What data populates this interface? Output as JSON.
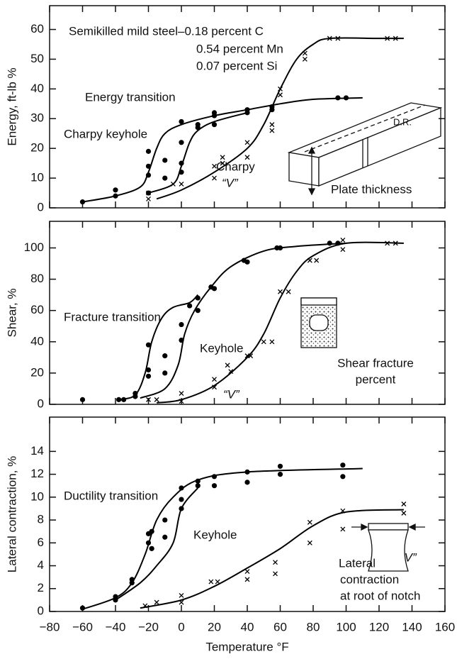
{
  "chart_data": [
    {
      "type": "scatter",
      "ylabel": "Energy, ft-lb %",
      "xlim": [
        -80,
        160
      ],
      "ylim": [
        0,
        68
      ],
      "yticks": [
        0,
        10,
        20,
        30,
        40,
        50,
        60
      ],
      "annotations": [
        "Semikilled mild steel–0.18 percent C",
        "0.54 percent Mn",
        "0.07 percent Si",
        "Energy transition",
        "Charpy keyhole",
        "Charpy",
        "“V”",
        "D.R.",
        "Plate thickness"
      ],
      "series": [
        {
          "style": "dot",
          "color": "#000000",
          "x": [
            -60,
            -40,
            -40,
            -20,
            -20,
            -20,
            -20,
            -10,
            -10,
            0,
            0,
            0,
            0,
            10,
            10,
            20,
            20,
            20,
            40,
            40,
            55,
            55,
            95,
            100
          ],
          "values": [
            2,
            6,
            4,
            19,
            14,
            11,
            5,
            16,
            10,
            29,
            22,
            15,
            12,
            28,
            27,
            32,
            31,
            28,
            33,
            32,
            34,
            33,
            37,
            37
          ]
        },
        {
          "style": "cross",
          "color": "#000000",
          "x": [
            -20,
            -20,
            -5,
            0,
            20,
            20,
            25,
            25,
            40,
            40,
            55,
            55,
            60,
            60,
            75,
            75,
            90,
            95,
            125,
            130
          ],
          "values": [
            5,
            3,
            8,
            8,
            14,
            10,
            17,
            15,
            22,
            17,
            28,
            26,
            40,
            38,
            52,
            50,
            57,
            57,
            57,
            57
          ]
        },
        {
          "style": "curve",
          "color": "#000000",
          "x": [
            -60,
            -40,
            -25,
            -20,
            -15,
            -10,
            0,
            20,
            40,
            60,
            80,
            110
          ],
          "values": [
            2,
            4,
            7,
            12,
            20,
            25,
            28,
            31,
            33,
            35,
            36.5,
            37
          ]
        },
        {
          "style": "curve",
          "color": "#000000",
          "x": [
            -20,
            -5,
            0,
            5,
            10,
            20,
            40
          ],
          "values": [
            5,
            8,
            14,
            22,
            26,
            29,
            32
          ]
        },
        {
          "style": "curve",
          "color": "#000000",
          "x": [
            -15,
            0,
            20,
            40,
            50,
            60,
            70,
            80,
            90,
            120,
            135
          ],
          "values": [
            3,
            6,
            12,
            20,
            28,
            40,
            50,
            55,
            57,
            57,
            57
          ]
        }
      ]
    },
    {
      "type": "scatter",
      "ylabel": "Shear, %",
      "xlim": [
        -80,
        160
      ],
      "ylim": [
        0,
        117
      ],
      "yticks": [
        0,
        20,
        40,
        60,
        80,
        100
      ],
      "annotations": [
        "Fracture transition",
        "Keyhole",
        "“V”",
        "Shear fracture",
        "percent"
      ],
      "series": [
        {
          "style": "dot",
          "color": "#000000",
          "x": [
            -60,
            -38,
            -35,
            -28,
            -28,
            -20,
            -20,
            -20,
            -10,
            -10,
            0,
            0,
            5,
            10,
            10,
            18,
            20,
            38,
            40,
            58,
            60,
            90,
            95
          ],
          "values": [
            3,
            3,
            3,
            7,
            5,
            38,
            22,
            18,
            31,
            20,
            51,
            41,
            63,
            68,
            60,
            75,
            74,
            92,
            91,
            100,
            100,
            103,
            103
          ]
        },
        {
          "style": "cross",
          "color": "#000000",
          "x": [
            -20,
            -15,
            0,
            0,
            20,
            20,
            28,
            30,
            40,
            42,
            50,
            55,
            60,
            65,
            78,
            82,
            98,
            98,
            125,
            130
          ],
          "values": [
            3,
            3,
            7,
            2,
            16,
            11,
            25,
            21,
            31,
            31,
            40,
            40,
            72,
            72,
            92,
            92,
            105,
            99,
            103,
            103
          ]
        },
        {
          "style": "curve",
          "color": "#000000",
          "x": [
            -38,
            -28,
            -22,
            -18,
            -12,
            -5,
            5,
            10
          ],
          "values": [
            3,
            6,
            20,
            40,
            55,
            62,
            65,
            70
          ]
        },
        {
          "style": "curve",
          "color": "#000000",
          "x": [
            -25,
            -10,
            -2,
            2,
            8,
            18,
            30,
            50,
            70,
            100
          ],
          "values": [
            4,
            10,
            25,
            45,
            60,
            75,
            88,
            98,
            101,
            103
          ]
        },
        {
          "style": "curve",
          "color": "#000000",
          "x": [
            -15,
            0,
            20,
            40,
            50,
            60,
            70,
            80,
            100,
            135
          ],
          "values": [
            1,
            3,
            12,
            30,
            45,
            68,
            85,
            95,
            103,
            103
          ]
        }
      ]
    },
    {
      "type": "scatter",
      "ylabel": "Lateral contraction, %",
      "xlabel": "Temperature °F",
      "xlim": [
        -80,
        160
      ],
      "ylim": [
        0,
        17
      ],
      "yticks": [
        0,
        2,
        4,
        6,
        8,
        10,
        12,
        14
      ],
      "xticks": [
        {
          "value": -80,
          "label": "−80"
        },
        {
          "value": -60,
          "label": "−60"
        },
        {
          "value": -40,
          "label": "−40"
        },
        {
          "value": -20,
          "label": "−20"
        },
        0,
        20,
        40,
        60,
        80,
        100,
        120,
        140,
        160
      ],
      "annotations": [
        "Ductility transition",
        "Keyhole",
        "“V”",
        "Lateral",
        "contraction",
        "at root of notch"
      ],
      "series": [
        {
          "style": "dot",
          "color": "#000000",
          "x": [
            -60,
            -40,
            -40,
            -30,
            -30,
            -20,
            -20,
            -18,
            -18,
            -10,
            -10,
            0,
            0,
            0,
            10,
            10,
            20,
            20,
            40,
            40,
            60,
            60,
            98,
            98
          ],
          "values": [
            0.3,
            1.3,
            1,
            2.8,
            2.5,
            6.8,
            6,
            7,
            5.5,
            8,
            6.5,
            10.8,
            9.8,
            9,
            11.4,
            11,
            11.8,
            11,
            12.2,
            11.3,
            12.7,
            12,
            12.8,
            11.8
          ]
        },
        {
          "style": "cross",
          "color": "#000000",
          "x": [
            -22,
            -15,
            0,
            0,
            18,
            22,
            40,
            40,
            57,
            57,
            78,
            78,
            98,
            98,
            135,
            135
          ],
          "values": [
            0.5,
            0.8,
            1.4,
            0.8,
            2.6,
            2.6,
            3.5,
            2.8,
            4.3,
            3.3,
            7.8,
            6,
            8.8,
            7.2,
            9.4,
            8.6
          ]
        },
        {
          "style": "curve",
          "color": "#000000",
          "x": [
            -60,
            -40,
            -30,
            -22,
            -15,
            -5,
            10,
            40,
            110
          ],
          "values": [
            0.2,
            1.2,
            2.5,
            5,
            8,
            10,
            11.5,
            12.2,
            12.5
          ]
        },
        {
          "style": "curve",
          "color": "#000000",
          "x": [
            -40,
            -25,
            -15,
            -5,
            0,
            10
          ],
          "values": [
            1,
            2.5,
            4,
            6,
            9,
            10.8
          ]
        },
        {
          "style": "curve",
          "color": "#000000",
          "x": [
            -25,
            0,
            20,
            40,
            60,
            80,
            100,
            135
          ],
          "values": [
            0.3,
            1,
            2.2,
            3.8,
            5.5,
            7.5,
            8.7,
            8.9
          ]
        }
      ]
    }
  ]
}
